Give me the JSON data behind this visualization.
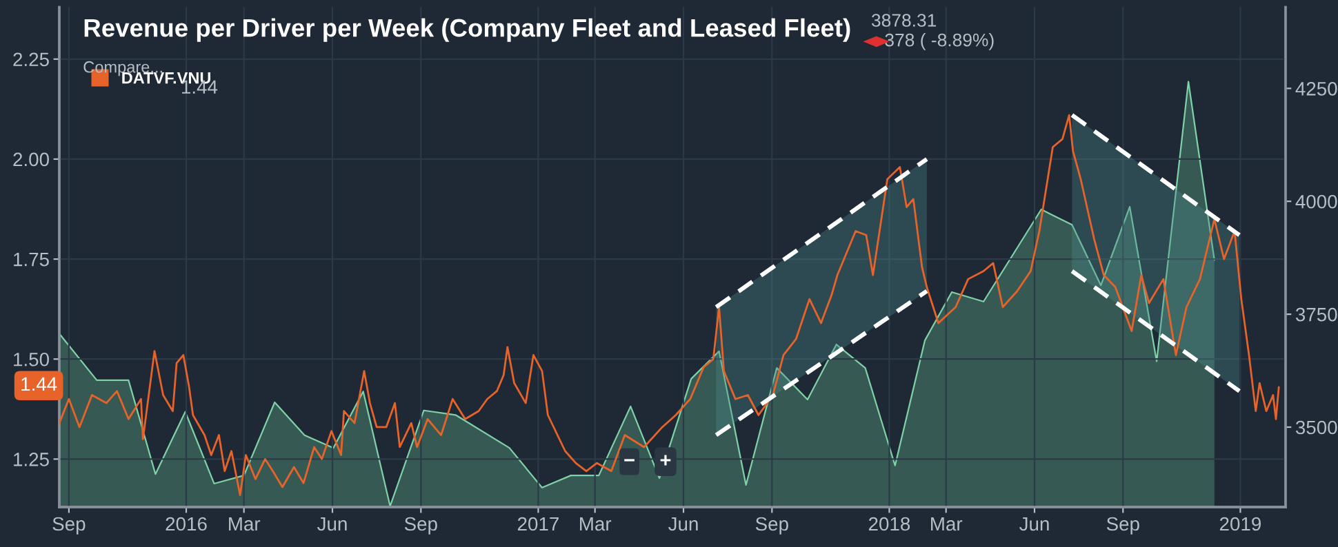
{
  "chart_data": {
    "type": "line",
    "title": "Revenue per Driver per Week (Company Fleet and Leased Fleet)",
    "xlim": [
      "2015-08-22",
      "2019-02-17"
    ],
    "xticks": [
      {
        "value": "2015-09-01",
        "label": "Sep"
      },
      {
        "value": "2016-01-01",
        "label": "2016"
      },
      {
        "value": "2016-03-01",
        "label": "Mar"
      },
      {
        "value": "2016-06-01",
        "label": "Jun"
      },
      {
        "value": "2016-09-01",
        "label": "Sep"
      },
      {
        "value": "2017-01-01",
        "label": "2017"
      },
      {
        "value": "2017-03-01",
        "label": "Mar"
      },
      {
        "value": "2017-06-01",
        "label": "Jun"
      },
      {
        "value": "2017-09-01",
        "label": "Sep"
      },
      {
        "value": "2018-01-01",
        "label": "2018"
      },
      {
        "value": "2018-03-01",
        "label": "Mar"
      },
      {
        "value": "2018-06-01",
        "label": "Jun"
      },
      {
        "value": "2018-09-01",
        "label": "Sep"
      },
      {
        "value": "2019-01-01",
        "label": "2019"
      }
    ],
    "ylim": [
      1.13,
      2.38
    ],
    "yticks": [
      {
        "value": 1.25,
        "label": "1.25"
      },
      {
        "value": 1.5,
        "label": "1.50"
      },
      {
        "value": 1.75,
        "label": "1.75"
      },
      {
        "value": 2.0,
        "label": "2.00"
      },
      {
        "value": 2.25,
        "label": "2.25"
      }
    ],
    "y2lim": [
      3323,
      4430
    ],
    "y2ticks": [
      3500,
      3750,
      4000,
      4250
    ],
    "grid": true,
    "legend": "top left",
    "series": [
      {
        "type": "area",
        "axis": "y2",
        "color": "#7fd1a8",
        "x": [
          "2015-08-22",
          "2015-09-30",
          "2015-11-02",
          "2015-11-30",
          "2015-12-31",
          "2016-01-30",
          "2016-03-01",
          "2016-04-02",
          "2016-05-03",
          "2016-06-02",
          "2016-07-03",
          "2016-07-31",
          "2016-09-04",
          "2016-10-07",
          "2016-12-02",
          "2017-01-05",
          "2017-02-04",
          "2017-03-05",
          "2017-04-07",
          "2017-05-07",
          "2017-06-09",
          "2017-07-08",
          "2017-08-05",
          "2017-09-06",
          "2017-10-08",
          "2017-11-07",
          "2017-12-07",
          "2018-01-07",
          "2018-02-07",
          "2018-03-07",
          "2018-04-09",
          "2018-06-08",
          "2018-07-10",
          "2018-08-09",
          "2018-09-08",
          "2018-10-06",
          "2018-11-08",
          "2018-12-05"
        ],
        "values": [
          3707,
          3604,
          3604,
          3396,
          3534,
          3375,
          3393,
          3555,
          3482,
          3454,
          3579,
          3325,
          3537,
          3527,
          3454,
          3366,
          3393,
          3393,
          3546,
          3387,
          3607,
          3668,
          3372,
          3631,
          3561,
          3683,
          3631,
          3415,
          3692,
          3799,
          3778,
          3982,
          3948,
          3814,
          3988,
          3646,
          4265,
          3870
        ]
      },
      {
        "name": "DATVF.VNU",
        "color": "#e8632a",
        "x": [
          "2015-08-22",
          "2015-09-01",
          "2015-09-12",
          "2015-09-25",
          "2015-10-10",
          "2015-10-21",
          "2015-11-02",
          "2015-11-15",
          "2015-11-17",
          "2015-11-29",
          "2015-12-08",
          "2015-12-18",
          "2015-12-22",
          "2015-12-29",
          "2016-01-04",
          "2016-01-08",
          "2016-01-20",
          "2016-01-27",
          "2016-02-04",
          "2016-02-10",
          "2016-02-17",
          "2016-02-26",
          "2016-03-03",
          "2016-03-13",
          "2016-03-23",
          "2016-03-31",
          "2016-04-10",
          "2016-04-22",
          "2016-05-02",
          "2016-05-13",
          "2016-05-21",
          "2016-05-31",
          "2016-06-10",
          "2016-06-13",
          "2016-06-24",
          "2016-07-04",
          "2016-07-10",
          "2016-07-17",
          "2016-07-27",
          "2016-08-05",
          "2016-08-10",
          "2016-08-22",
          "2016-08-28",
          "2016-09-08",
          "2016-09-22",
          "2016-10-04",
          "2016-10-17",
          "2016-10-31",
          "2016-11-09",
          "2016-11-19",
          "2016-11-26",
          "2016-11-30",
          "2016-12-07",
          "2016-12-19",
          "2016-12-27",
          "2017-01-05",
          "2017-01-11",
          "2017-01-19",
          "2017-01-29",
          "2017-02-09",
          "2017-02-20",
          "2017-03-03",
          "2017-03-18",
          "2017-04-01",
          "2017-04-21",
          "2017-05-10",
          "2017-05-24",
          "2017-06-08",
          "2017-06-22",
          "2017-07-02",
          "2017-07-08",
          "2017-07-13",
          "2017-07-25",
          "2017-08-07",
          "2017-08-18",
          "2017-09-02",
          "2017-09-13",
          "2017-09-26",
          "2017-10-10",
          "2017-10-22",
          "2017-11-02",
          "2017-11-08",
          "2017-11-27",
          "2017-12-08",
          "2017-12-15",
          "2017-12-30",
          "2018-01-12",
          "2018-01-19",
          "2018-01-26",
          "2018-02-04",
          "2018-02-09",
          "2018-02-21",
          "2018-03-11",
          "2018-03-24",
          "2018-04-09",
          "2018-04-19",
          "2018-04-29",
          "2018-05-14",
          "2018-05-28",
          "2018-06-06",
          "2018-06-20",
          "2018-06-30",
          "2018-07-07",
          "2018-07-11",
          "2018-07-19",
          "2018-08-02",
          "2018-08-12",
          "2018-08-24",
          "2018-09-10",
          "2018-09-20",
          "2018-09-28",
          "2018-10-13",
          "2018-10-26",
          "2018-11-06",
          "2018-11-20",
          "2018-12-05",
          "2018-12-15",
          "2018-12-26",
          "2019-01-02",
          "2019-01-10",
          "2019-01-17",
          "2019-01-21",
          "2019-01-28",
          "2019-02-04",
          "2019-02-07",
          "2019-02-10"
        ],
        "values": [
          1.34,
          1.4,
          1.33,
          1.41,
          1.39,
          1.42,
          1.35,
          1.4,
          1.3,
          1.52,
          1.41,
          1.37,
          1.49,
          1.51,
          1.43,
          1.36,
          1.31,
          1.26,
          1.31,
          1.22,
          1.27,
          1.16,
          1.26,
          1.2,
          1.25,
          1.22,
          1.18,
          1.23,
          1.19,
          1.28,
          1.25,
          1.32,
          1.26,
          1.37,
          1.34,
          1.47,
          1.39,
          1.33,
          1.33,
          1.39,
          1.28,
          1.34,
          1.28,
          1.35,
          1.31,
          1.4,
          1.35,
          1.37,
          1.4,
          1.42,
          1.46,
          1.53,
          1.44,
          1.39,
          1.51,
          1.47,
          1.36,
          1.32,
          1.27,
          1.24,
          1.22,
          1.24,
          1.22,
          1.31,
          1.28,
          1.33,
          1.36,
          1.4,
          1.48,
          1.5,
          1.63,
          1.47,
          1.4,
          1.41,
          1.36,
          1.41,
          1.51,
          1.55,
          1.65,
          1.59,
          1.66,
          1.71,
          1.82,
          1.81,
          1.71,
          1.95,
          1.98,
          1.88,
          1.9,
          1.73,
          1.68,
          1.59,
          1.63,
          1.7,
          1.72,
          1.74,
          1.63,
          1.67,
          1.72,
          1.82,
          2.03,
          2.05,
          2.11,
          2.02,
          1.95,
          1.8,
          1.71,
          1.68,
          1.57,
          1.71,
          1.64,
          1.7,
          1.51,
          1.63,
          1.7,
          1.85,
          1.75,
          1.82,
          1.65,
          1.51,
          1.37,
          1.44,
          1.37,
          1.41,
          1.35,
          1.43
        ]
      },
      {
        "color": "#ffffff",
        "line_style": "dashed",
        "x": [
          "2017-07-05",
          "2018-02-09"
        ],
        "values": [
          1.63,
          2.0
        ],
        "lower": [
          1.31,
          1.67
        ],
        "upper": [
          1.63,
          2.0
        ]
      },
      {
        "color": "#ffffff",
        "line_style": "dashed",
        "x": [
          "2017-07-05",
          "2018-02-09"
        ],
        "values": [
          1.31,
          1.67
        ]
      },
      {
        "color": "#ffffff",
        "line_style": "dashed",
        "x": [
          "2018-07-10",
          "2018-12-31"
        ],
        "values": [
          2.11,
          1.81
        ],
        "lower": [
          1.72,
          1.42
        ],
        "upper": [
          2.11,
          1.81
        ]
      },
      {
        "color": "#ffffff",
        "line_style": "dashed",
        "x": [
          "2018-07-10",
          "2018-12-31"
        ],
        "values": [
          1.72,
          1.42
        ]
      }
    ],
    "annotations": [
      "Compare...",
      "1.44",
      "3878.31",
      "378 ( -8.89%)",
      "1.44",
      "−",
      "+"
    ]
  }
}
